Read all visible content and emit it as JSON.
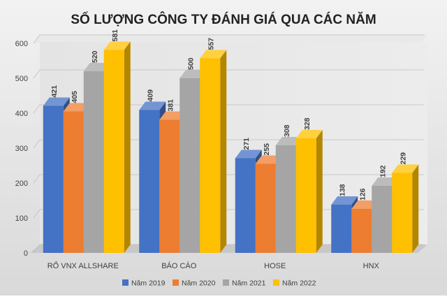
{
  "chart_data": {
    "type": "bar",
    "title": "SỐ LƯỢNG CÔNG TY ĐÁNH GIÁ QUA CÁC NĂM",
    "categories": [
      "RỔ VNX ALLSHARE",
      "BÁO CÁO",
      "HOSE",
      "HNX"
    ],
    "series": [
      {
        "name": "Năm 2019",
        "values": [
          421,
          409,
          271,
          138
        ],
        "color": "#4472C4"
      },
      {
        "name": "Năm 2020",
        "values": [
          405,
          381,
          255,
          126
        ],
        "color": "#ED7D31"
      },
      {
        "name": "Năm 2021",
        "values": [
          520,
          500,
          308,
          192
        ],
        "color": "#A5A5A5"
      },
      {
        "name": "Năm 2022",
        "values": [
          581,
          557,
          328,
          229
        ],
        "color": "#FFC000"
      }
    ],
    "yticks": [
      "0",
      "100",
      "200",
      "300",
      "400",
      "500",
      "600"
    ],
    "ylim": [
      0,
      600
    ],
    "grid": true,
    "legend": "bottom",
    "style": "3d-clustered-column"
  }
}
